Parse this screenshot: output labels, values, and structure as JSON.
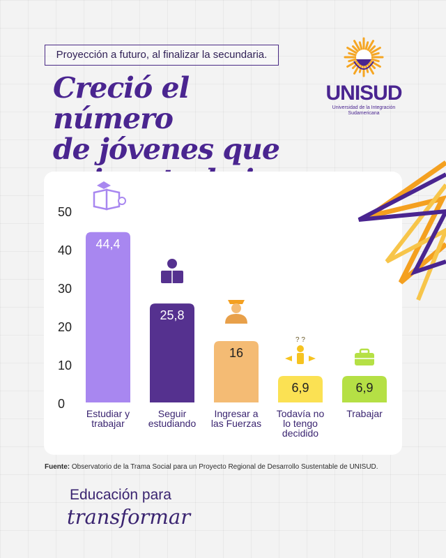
{
  "tagline": "Proyección a futuro, al finalizar la secundaria.",
  "headline": [
    "Creció el número",
    "de jóvenes que",
    "quiere trabajar"
  ],
  "logo": {
    "name": "UNISUD",
    "subtitle_line1": "Universidad de la Integración",
    "subtitle_line2": "Sudamericana"
  },
  "source": {
    "label": "Fuente:",
    "text": "Observatorio de la Trama Social para un Proyecto Regional de Desarrollo Sustentable de UNISUD."
  },
  "slogan": {
    "line1": "Educación para",
    "line2": "transformar"
  },
  "colors": {
    "primary": "#4a2590",
    "bars": [
      "#a887f0",
      "#55318f",
      "#f4bb74",
      "#fbe153",
      "#b5e045"
    ]
  },
  "chart_data": {
    "type": "bar",
    "categories": [
      [
        "Estudiar y",
        "trabajar"
      ],
      [
        "Seguir",
        "estudiando"
      ],
      [
        "Ingresar a",
        "las Fuerzas"
      ],
      [
        "Todavía no",
        "lo tengo",
        "decidido"
      ],
      [
        "Trabajar"
      ]
    ],
    "values": [
      44.4,
      25.8,
      16,
      6.9,
      6.9
    ],
    "value_labels": [
      "44,4",
      "25,8",
      "16",
      "6,9",
      "6,9"
    ],
    "icons": [
      "book-lightbulb-icon",
      "student-reading-icon",
      "officer-icon",
      "confused-person-icon",
      "briefcase-icon"
    ],
    "yticks": [
      "0",
      "10",
      "20",
      "30",
      "40",
      "50"
    ],
    "ylim": [
      0,
      50
    ],
    "title": "",
    "xlabel": "",
    "ylabel": ""
  }
}
